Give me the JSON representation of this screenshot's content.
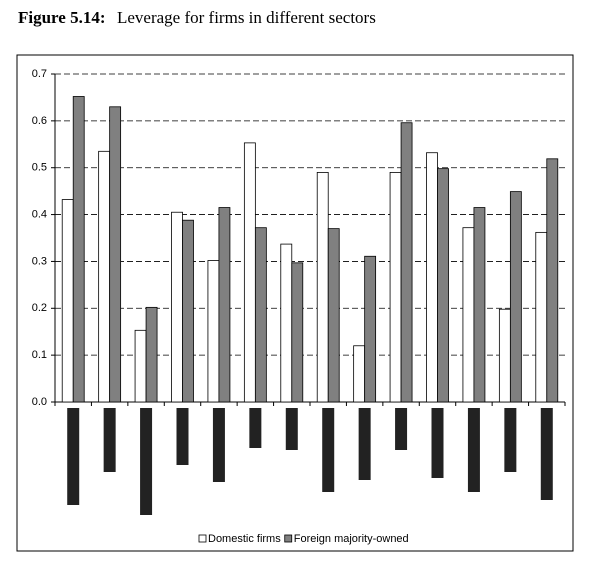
{
  "chart_data": {
    "type": "bar",
    "title_label": "Figure 5.14:",
    "title": "Leverage for firms in different sectors",
    "categories": [
      null,
      null,
      null,
      null,
      null,
      null,
      null,
      null,
      null,
      null,
      null,
      null,
      null,
      null
    ],
    "series": [
      {
        "name": "Domestic firms",
        "color": "#ffffff",
        "values": [
          0.432,
          0.535,
          0.153,
          0.405,
          0.302,
          0.553,
          0.337,
          0.49,
          0.12,
          0.49,
          0.532,
          0.372,
          0.198,
          0.362
        ]
      },
      {
        "name": "Foreign majority-owned",
        "color": "#808080",
        "values": [
          0.652,
          0.63,
          0.202,
          0.388,
          0.415,
          0.372,
          0.297,
          0.37,
          0.311,
          0.596,
          0.498,
          0.415,
          0.449,
          0.519
        ]
      }
    ],
    "ylim": [
      0,
      0.7
    ],
    "yticks": [
      {
        "value": 0,
        "label": "0.0"
      },
      0.1,
      0.2,
      0.3,
      0.4,
      0.5,
      0.6,
      0.7
    ],
    "grid": true
  }
}
